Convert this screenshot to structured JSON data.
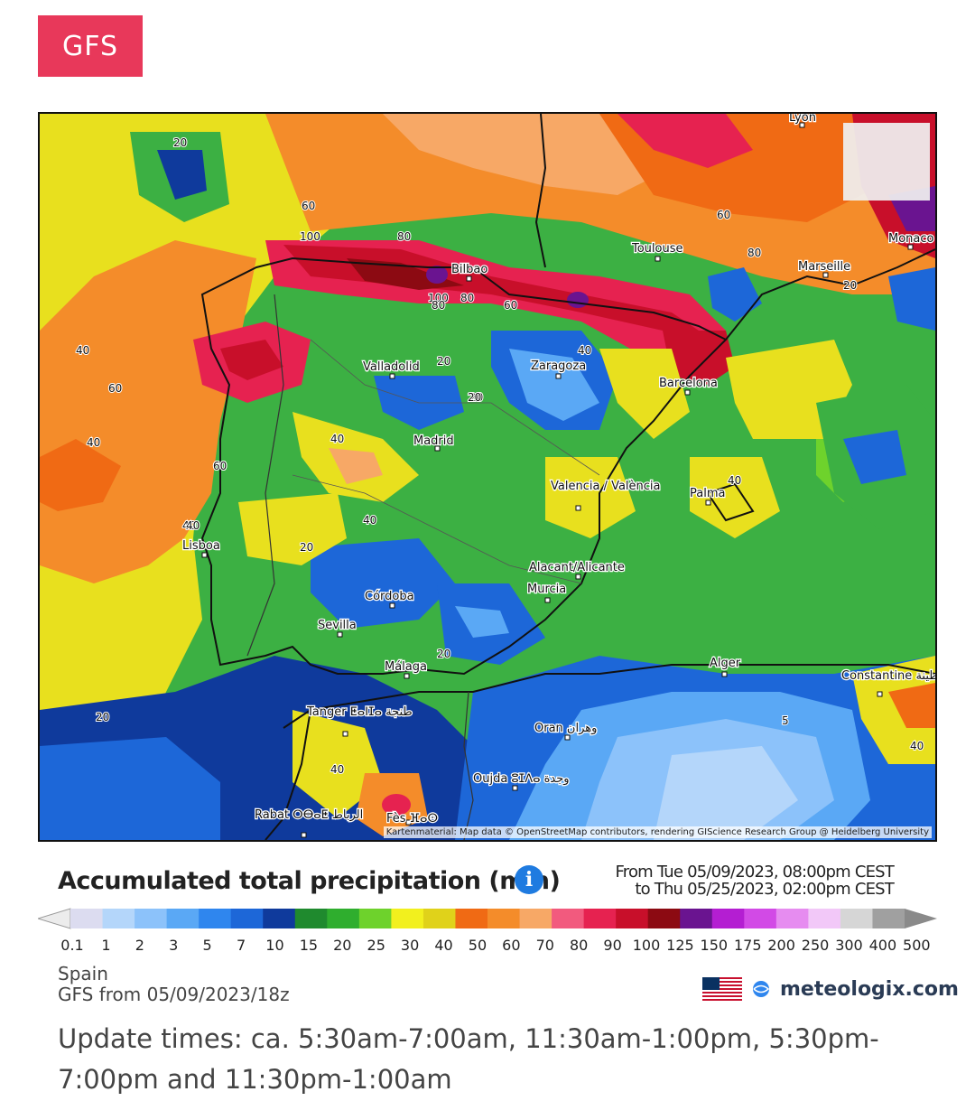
{
  "model_badge": "GFS",
  "map": {
    "cities": [
      {
        "name": "Lyon"
      },
      {
        "name": "Monaco"
      },
      {
        "name": "Toulouse"
      },
      {
        "name": "Marseille"
      },
      {
        "name": "Bilbao"
      },
      {
        "name": "Barcelona"
      },
      {
        "name": "Zaragoza"
      },
      {
        "name": "Valladolid"
      },
      {
        "name": "Madrid"
      },
      {
        "name": "Valencia / València"
      },
      {
        "name": "Palma"
      },
      {
        "name": "Lisboa"
      },
      {
        "name": "Alacant/Alicante"
      },
      {
        "name": "Murcia"
      },
      {
        "name": "Córdoba"
      },
      {
        "name": "Sevilla"
      },
      {
        "name": "Málaga"
      },
      {
        "name": "Alger"
      },
      {
        "name": "Constantine قسنطينة"
      },
      {
        "name": "Tanger ⵟⴰⵏⵊⴰ طنجة"
      },
      {
        "name": "Oran وهران"
      },
      {
        "name": "Oujda ⵓⵊⴷⴰ وجدة"
      },
      {
        "name": "Rabat ⵔⴱⴰⵟ الرباط"
      },
      {
        "name": "Fès ⴼⴰⵙ"
      }
    ],
    "isolines": [
      "20",
      "60",
      "100",
      "80",
      "80",
      "60",
      "40",
      "40",
      "60",
      "40",
      "60",
      "80",
      "100",
      "80",
      "60",
      "40",
      "20",
      "20",
      "20",
      "40",
      "40",
      "20",
      "40",
      "20",
      "20",
      "5",
      "40",
      "60",
      "40",
      "40",
      "20"
    ],
    "attribution": "Kartenmaterial: Map data © OpenStreetMap contributors, rendering GIScience Research Group @ Heidelberg University",
    "share_icon": "share-icon"
  },
  "legend": {
    "title": "Accumulated total precipitation (mm)",
    "info_icon": "info-icon",
    "range_from": "From Tue 05/09/2023, 08:00pm CEST",
    "range_to": "to Thu 05/25/2023, 02:00pm CEST",
    "ticks": [
      "0.1",
      "1",
      "2",
      "3",
      "5",
      "7",
      "10",
      "15",
      "20",
      "25",
      "30",
      "40",
      "50",
      "60",
      "70",
      "80",
      "90",
      "100",
      "125",
      "150",
      "175",
      "200",
      "250",
      "300",
      "400",
      "500"
    ],
    "colors": [
      "#dcdcf0",
      "#b4d6fa",
      "#8cc2fa",
      "#5aa8f5",
      "#2f86ee",
      "#1d67d8",
      "#0f3a9c",
      "#1f8a2e",
      "#2fae2e",
      "#6ed22c",
      "#f2f01e",
      "#e0d21a",
      "#f06a14",
      "#f48c2a",
      "#f7a866",
      "#f25a7e",
      "#e62250",
      "#c80f2a",
      "#8c0a12",
      "#6a1490",
      "#b41ed2",
      "#d24ae6",
      "#e68cf0",
      "#f2c8f8",
      "#d6d6d6",
      "#a0a0a0"
    ]
  },
  "meta": {
    "region": "Spain",
    "run": "GFS from 05/09/2023/18z",
    "brand": "meteologix.com",
    "flag_icon": "us-flag-icon",
    "globe_icon": "globe-icon"
  },
  "update_times": "Update times: ca. 5:30am-7:00am, 11:30am-1:00pm, 5:30pm-7:00pm and 11:30pm-1:00am"
}
